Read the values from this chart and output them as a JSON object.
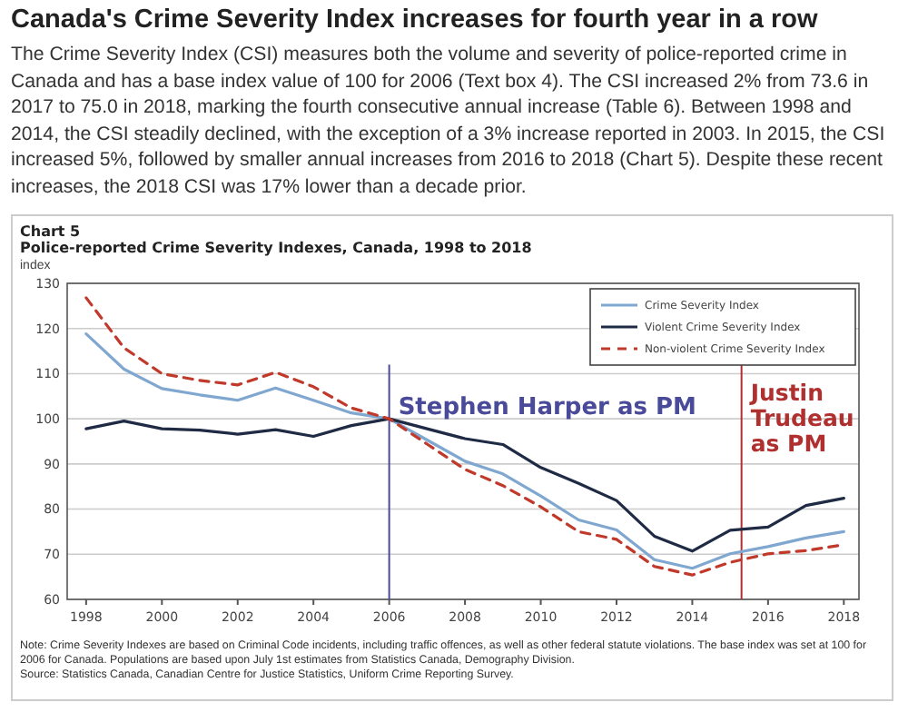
{
  "chart_data": {
    "type": "line",
    "title": "Canada's Crime Severity Index increases for fourth year in a row",
    "subtitle": "The Crime Severity Index (CSI) measures both the volume and severity of police-reported crime in Canada and has a base index value of 100 for 2006 (Text box 4). The CSI increased 2% from 73.6 in 2017 to 75.0 in 2018, marking the fourth consecutive annual increase (Table 6). Between 1998 and 2014, the CSI steadily declined, with the exception of a 3% increase reported in 2003. In 2015, the CSI increased 5%, followed by smaller annual increases from 2016 to 2018 (Chart 5). Despite these recent increases, the 2018 CSI was 17% lower than a decade prior.",
    "annotations": [
      "Chart 5",
      "Police-reported Crime Severity Indexes, Canada, 1998 to 2018",
      "Note: Crime Severity Indexes are based on Criminal Code incidents, including traffic offences, as well as other federal statute violations. The base index was set at 100 for 2006 for Canada. Populations are based upon July 1st estimates from Statistics Canada, Demography Division.",
      "Source: Statistics Canada, Canadian Centre for Justice Statistics, Uniform Crime Reporting Survey."
    ],
    "ylabel": "index",
    "x": [
      1998,
      1999,
      2000,
      2001,
      2002,
      2003,
      2004,
      2005,
      2006,
      2007,
      2008,
      2009,
      2010,
      2011,
      2012,
      2013,
      2014,
      2015,
      2016,
      2017,
      2018
    ],
    "series": [
      {
        "name": "Crime Severity Index",
        "color": "#7fa7d0",
        "line_style": "solid",
        "values": [
          118.8,
          111.0,
          106.7,
          105.3,
          104.1,
          106.8,
          104.1,
          101.3,
          100,
          95.3,
          90.6,
          87.8,
          82.9,
          77.6,
          75.4,
          68.8,
          66.9,
          70.1,
          71.7,
          73.6,
          75.0
        ]
      },
      {
        "name": "Violent Crime Severity Index",
        "color": "#1f2a44",
        "line_style": "solid",
        "values": [
          97.8,
          99.5,
          97.8,
          97.5,
          96.6,
          97.6,
          96.1,
          98.5,
          100,
          97.8,
          95.6,
          94.3,
          89.2,
          85.7,
          81.9,
          74.0,
          70.7,
          75.3,
          76.0,
          80.8,
          82.4
        ]
      },
      {
        "name": "Non-violent Crime Severity Index",
        "color": "#c0392b",
        "line_style": "dashed",
        "values": [
          126.8,
          115.7,
          110.0,
          108.5,
          107.5,
          110.3,
          107.1,
          102.4,
          100,
          94.4,
          88.8,
          85.2,
          80.5,
          75.0,
          73.3,
          67.3,
          65.4,
          68.2,
          70.1,
          70.8,
          72.1
        ]
      }
    ],
    "xlim": [
      1997.5,
      2018.4
    ],
    "xticks": [
      1998,
      2000,
      2002,
      2004,
      2006,
      2008,
      2010,
      2012,
      2014,
      2016,
      2018
    ],
    "ylim": [
      60,
      130
    ],
    "yticks": [
      60,
      70,
      80,
      90,
      100,
      110,
      120,
      130
    ],
    "ref_lines": [
      {
        "axis": "x",
        "value": 2006,
        "label": "Stephen Harper as PM",
        "color": "#4a4a9a"
      },
      {
        "axis": "x",
        "value": 2015.3,
        "label": "Justin Trudeau as PM",
        "color": "#b03030"
      }
    ],
    "grid": "y",
    "legend": "top right",
    "marker": "none"
  }
}
